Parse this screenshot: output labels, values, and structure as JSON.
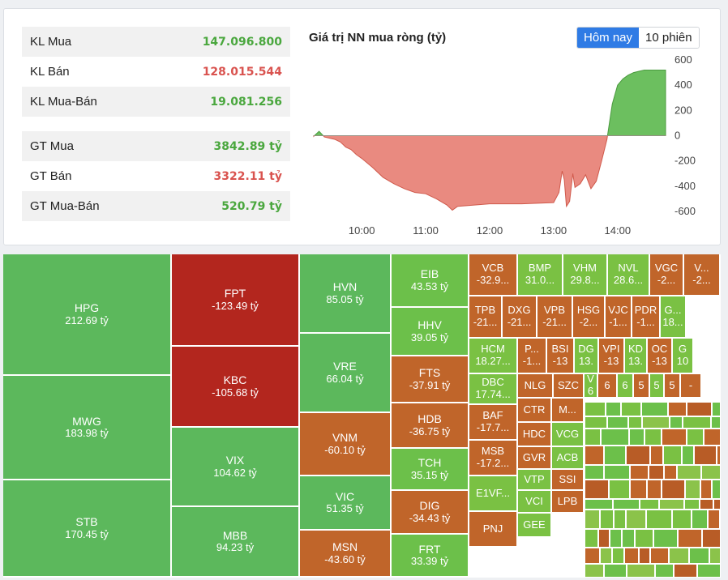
{
  "stats": {
    "group1": [
      {
        "label": "KL Mua",
        "value": "147.096.800",
        "color": "green"
      },
      {
        "label": "KL Bán",
        "value": "128.015.544",
        "color": "red"
      },
      {
        "label": "KL Mua-Bán",
        "value": "19.081.256",
        "color": "green"
      }
    ],
    "group2": [
      {
        "label": "GT Mua",
        "value": "3842.89 tỷ",
        "color": "green"
      },
      {
        "label": "GT Bán",
        "value": "3322.11 tỷ",
        "color": "red"
      },
      {
        "label": "GT Mua-Bán",
        "value": "520.79 tỷ",
        "color": "green"
      }
    ]
  },
  "toggle": {
    "today": "Hôm nay",
    "ten_sessions": "10 phiên"
  },
  "colors": {
    "positive": "#5cb85c",
    "negative": "#e57373",
    "accent": "#2f7be5"
  },
  "chart_data": {
    "type": "area",
    "title": "Giá trị NN mua ròng (tỷ)",
    "xlabel": "",
    "ylabel": "",
    "x_ticks": [
      "10:00",
      "11:00",
      "12:00",
      "13:00",
      "14:00"
    ],
    "y_ticks": [
      600,
      400,
      200,
      0,
      -200,
      -400,
      -600
    ],
    "ylim": [
      -600,
      600
    ],
    "y_axis_side": "right",
    "grid": false,
    "x": [
      "09:15",
      "09:20",
      "09:25",
      "09:30",
      "09:35",
      "09:40",
      "09:45",
      "09:50",
      "09:55",
      "10:00",
      "10:10",
      "10:20",
      "10:30",
      "10:40",
      "10:50",
      "11:00",
      "11:10",
      "11:20",
      "11:25",
      "11:30",
      "12:00",
      "12:30",
      "13:00",
      "13:05",
      "13:08",
      "13:10",
      "13:12",
      "13:15",
      "13:18",
      "13:20",
      "13:25",
      "13:30",
      "13:35",
      "13:40",
      "13:45",
      "13:50",
      "13:55",
      "14:00",
      "14:05",
      "14:10",
      "14:15",
      "14:20",
      "14:25",
      "14:30",
      "14:35",
      "14:40",
      "14:45"
    ],
    "values": [
      -5,
      35,
      -10,
      -20,
      -30,
      -50,
      -90,
      -110,
      -150,
      -180,
      -250,
      -330,
      -380,
      -420,
      -450,
      -460,
      -500,
      -550,
      -590,
      -560,
      -540,
      -540,
      -530,
      -450,
      -280,
      -350,
      -560,
      -520,
      -300,
      -410,
      -380,
      -310,
      -420,
      -360,
      -200,
      -30,
      250,
      400,
      450,
      480,
      500,
      510,
      520,
      520,
      520,
      520,
      520
    ]
  },
  "treemap": [
    {
      "sym": "HPG",
      "v": "212.69 tỷ",
      "color": "#5cb85c"
    },
    {
      "sym": "MWG",
      "v": "183.98 tỷ",
      "color": "#5cb85c"
    },
    {
      "sym": "STB",
      "v": "170.45 tỷ",
      "color": "#5cb85c"
    },
    {
      "sym": "FPT",
      "v": "-123.49 tỷ",
      "color": "#b3261e"
    },
    {
      "sym": "KBC",
      "v": "-105.68 tỷ",
      "color": "#b3261e"
    },
    {
      "sym": "VIX",
      "v": "104.62 tỷ",
      "color": "#5cb85c"
    },
    {
      "sym": "MBB",
      "v": "94.23 tỷ",
      "color": "#5cb85c"
    },
    {
      "sym": "HVN",
      "v": "85.05 tỷ",
      "color": "#5cb85c"
    },
    {
      "sym": "VRE",
      "v": "66.04 tỷ",
      "color": "#5cb85c"
    },
    {
      "sym": "VNM",
      "v": "-60.10 tỷ",
      "color": "#c0652a"
    },
    {
      "sym": "VIC",
      "v": "51.35 tỷ",
      "color": "#5cb85c"
    },
    {
      "sym": "MSN",
      "v": "-43.60 tỷ",
      "color": "#c0652a"
    },
    {
      "sym": "EIB",
      "v": "43.53 tỷ",
      "color": "#6cc04a"
    },
    {
      "sym": "HHV",
      "v": "39.05 tỷ",
      "color": "#6cc04a"
    },
    {
      "sym": "FTS",
      "v": "-37.91 tỷ",
      "color": "#c0652a"
    },
    {
      "sym": "HDB",
      "v": "-36.75 tỷ",
      "color": "#c0652a"
    },
    {
      "sym": "TCH",
      "v": "35.15 tỷ",
      "color": "#6cc04a"
    },
    {
      "sym": "DIG",
      "v": "-34.43 tỷ",
      "color": "#c0652a"
    },
    {
      "sym": "FRT",
      "v": "33.39 tỷ",
      "color": "#6cc04a"
    },
    {
      "sym": "VCB",
      "v": "-32.9...",
      "color": "#c0652a"
    },
    {
      "sym": "BMP",
      "v": "31.0...",
      "color": "#7ac143"
    },
    {
      "sym": "VHM",
      "v": "29.8...",
      "color": "#7ac143"
    },
    {
      "sym": "NVL",
      "v": "28.6...",
      "color": "#7ac143"
    },
    {
      "sym": "VGC",
      "v": "-2...",
      "color": "#c0652a"
    },
    {
      "sym": "V...",
      "v": "-2...",
      "color": "#c0652a"
    },
    {
      "sym": "TPB",
      "v": "-21...",
      "color": "#c0652a"
    },
    {
      "sym": "DXG",
      "v": "-21...",
      "color": "#c0652a"
    },
    {
      "sym": "VPB",
      "v": "-21...",
      "color": "#c0652a"
    },
    {
      "sym": "HSG",
      "v": "-2...",
      "color": "#c0652a"
    },
    {
      "sym": "VJC",
      "v": "-1...",
      "color": "#c0652a"
    },
    {
      "sym": "PDR",
      "v": "-1...",
      "color": "#c0652a"
    },
    {
      "sym": "G...",
      "v": "18...",
      "color": "#7ac143"
    },
    {
      "sym": "HCM",
      "v": "18.27...",
      "color": "#7ac143"
    },
    {
      "sym": "P...",
      "v": "-1...",
      "color": "#c0652a"
    },
    {
      "sym": "BSI",
      "v": "-13",
      "color": "#c0652a"
    },
    {
      "sym": "DG",
      "v": "13.",
      "color": "#7ac143"
    },
    {
      "sym": "VPI",
      "v": "-13",
      "color": "#c0652a"
    },
    {
      "sym": "KD",
      "v": "13.",
      "color": "#7ac143"
    },
    {
      "sym": "OC",
      "v": "-13",
      "color": "#c0652a"
    },
    {
      "sym": "G",
      "v": "10",
      "color": "#7ac143"
    },
    {
      "sym": "DBC",
      "v": "17.74...",
      "color": "#7ac143"
    },
    {
      "sym": "NLG",
      "v": "",
      "color": "#c0652a"
    },
    {
      "sym": "SZC",
      "v": "",
      "color": "#c0652a"
    },
    {
      "sym": "V",
      "v": "6",
      "color": "#7ac143"
    },
    {
      "sym": "",
      "v": "6",
      "color": "#c0652a"
    },
    {
      "sym": "",
      "v": "6",
      "color": "#7ac143"
    },
    {
      "sym": "",
      "v": "5",
      "color": "#c0652a"
    },
    {
      "sym": "",
      "v": "5",
      "color": "#7ac143"
    },
    {
      "sym": "",
      "v": "5",
      "color": "#c0652a"
    },
    {
      "sym": "",
      "v": "-",
      "color": "#c0652a"
    },
    {
      "sym": "BAF",
      "v": "-17.7...",
      "color": "#c0652a"
    },
    {
      "sym": "CTR",
      "v": "",
      "color": "#c0652a"
    },
    {
      "sym": "M...",
      "v": "",
      "color": "#c0652a"
    },
    {
      "sym": "MSB",
      "v": "-17.2...",
      "color": "#c0652a"
    },
    {
      "sym": "HDC",
      "v": "",
      "color": "#c0652a"
    },
    {
      "sym": "VCG",
      "v": "",
      "color": "#7ac143"
    },
    {
      "sym": "GVR",
      "v": "",
      "color": "#c0652a"
    },
    {
      "sym": "ACB",
      "v": "",
      "color": "#7ac143"
    },
    {
      "sym": "E1VF...",
      "v": "",
      "color": "#7ac143"
    },
    {
      "sym": "VTP",
      "v": "",
      "color": "#7ac143"
    },
    {
      "sym": "SSI",
      "v": "",
      "color": "#c0652a"
    },
    {
      "sym": "VCI",
      "v": "",
      "color": "#7ac143"
    },
    {
      "sym": "LPB",
      "v": "",
      "color": "#c0652a"
    },
    {
      "sym": "PNJ",
      "v": "",
      "color": "#c0652a"
    },
    {
      "sym": "GEE",
      "v": "",
      "color": "#7ac143"
    }
  ]
}
